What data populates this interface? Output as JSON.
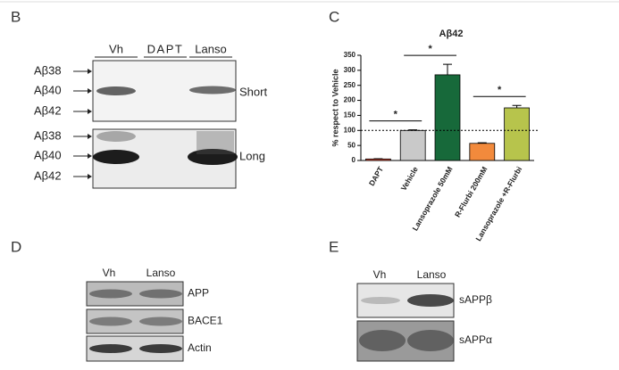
{
  "panels": {
    "B": {
      "letter": "B",
      "lanes": [
        "Vh",
        "DAPT",
        "Lanso"
      ],
      "markers": [
        "Aβ38",
        "Aβ40",
        "Aβ42"
      ],
      "exposures": [
        "Short",
        "Long"
      ]
    },
    "C": {
      "letter": "C"
    },
    "D": {
      "letter": "D",
      "lanes": [
        "Vh",
        "Lanso"
      ],
      "bands": [
        "APP",
        "BACE1",
        "Actin"
      ]
    },
    "E": {
      "letter": "E",
      "lanes": [
        "Vh",
        "Lanso"
      ],
      "bands": [
        "sAPPβ",
        "sAPPα"
      ]
    }
  },
  "chart_data": {
    "type": "bar",
    "title": "Aβ42",
    "y_label": "% respect to Vehicle",
    "categories": [
      "DAPT",
      "Vehicle",
      "Lansoprazole 50mM",
      "R-Flurbi 200mM",
      "Lansoprazole +R-Flurbi"
    ],
    "values": [
      5,
      100,
      285,
      57,
      175
    ],
    "errors": [
      1,
      2,
      35,
      2,
      8
    ],
    "colors": [
      "#e8503a",
      "#c9c9c9",
      "#17693a",
      "#f28a3c",
      "#b7c44c"
    ],
    "ylim": [
      0,
      350
    ],
    "yticks": [
      0,
      50,
      100,
      150,
      200,
      250,
      300,
      350
    ],
    "reference_line": 100,
    "significance": [
      {
        "label": "*",
        "between": [
          "DAPT",
          "Vehicle"
        ]
      },
      {
        "label": "*",
        "between": [
          "Vehicle",
          "Lansoprazole 50mM"
        ]
      },
      {
        "label": "*",
        "between": [
          "R-Flurbi 200mM",
          "Lansoprazole +R-Flurbi"
        ]
      }
    ]
  }
}
